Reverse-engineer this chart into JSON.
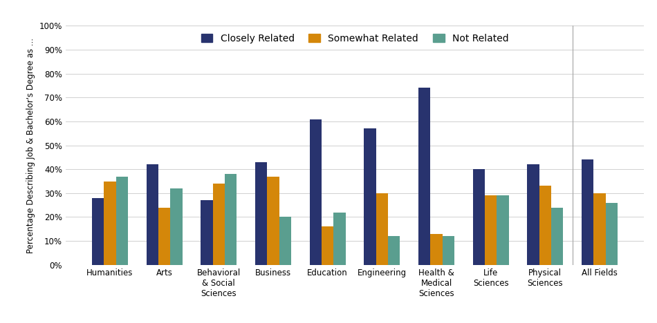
{
  "categories": [
    "Humanities",
    "Arts",
    "Behavioral\n& Social\nSciences",
    "Business",
    "Education",
    "Engineering",
    "Health &\nMedical\nSciences",
    "Life\nSciences",
    "Physical\nSciences",
    "All Fields"
  ],
  "closely_related": [
    28,
    42,
    27,
    43,
    61,
    57,
    74,
    40,
    42,
    44
  ],
  "somewhat_related": [
    35,
    24,
    34,
    37,
    16,
    30,
    13,
    29,
    33,
    30
  ],
  "not_related": [
    37,
    32,
    38,
    20,
    22,
    12,
    12,
    29,
    24,
    26
  ],
  "colors": {
    "closely": "#28336e",
    "somewhat": "#d4870a",
    "not": "#5a9e8f"
  },
  "legend_labels": [
    "Closely Related",
    "Somewhat Related",
    "Not Related"
  ],
  "ylabel": "Percentage Describing Job & Bachelor's Degree as ...",
  "yticks": [
    0,
    10,
    20,
    30,
    40,
    50,
    60,
    70,
    80,
    90,
    100
  ],
  "ylim": [
    0,
    100
  ],
  "bar_width": 0.22,
  "tick_fontsize": 8.5,
  "legend_fontsize": 10,
  "background_color": "#ffffff",
  "grid_color": "#d0d0d0"
}
